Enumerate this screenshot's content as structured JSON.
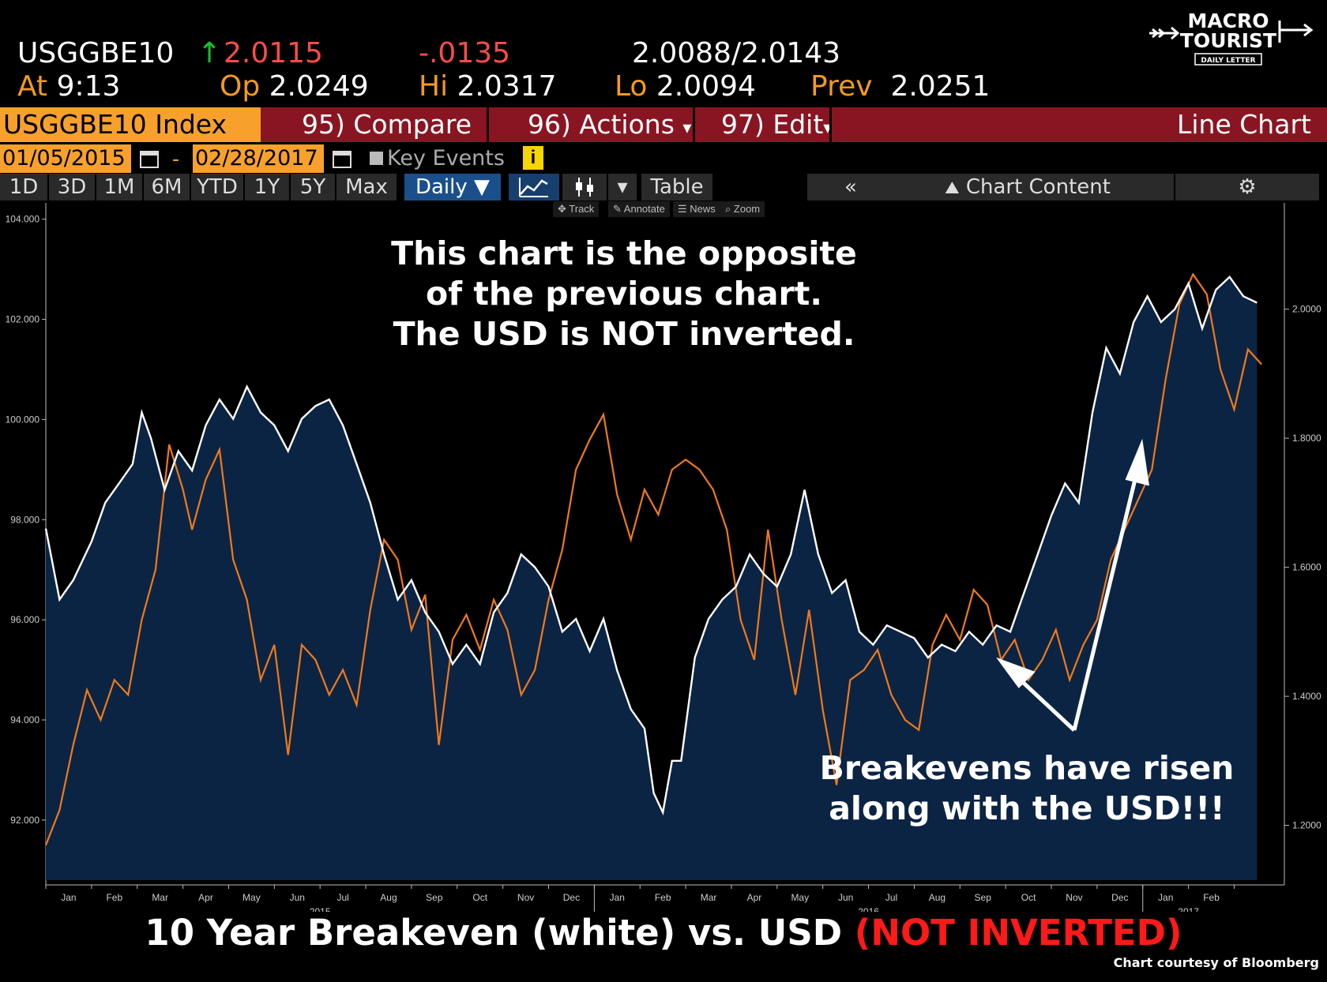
{
  "quote": {
    "ticker": "USGGBE10",
    "last": "2.0115",
    "change": "-.0135",
    "bid": "2.0088",
    "ask": "2.0143",
    "time_label": "At",
    "time": "9:13",
    "open_label": "Op",
    "open": "2.0249",
    "high_label": "Hi",
    "high": "2.0317",
    "low_label": "Lo",
    "low": "2.0094",
    "prev_label": "Prev",
    "prev": "2.0251"
  },
  "toolbar": {
    "security": "USGGBE10 Index",
    "compare": "95) Compare",
    "actions": "96) Actions",
    "edit": "97) Edit",
    "chart_type": "Line Chart"
  },
  "range": {
    "start": "01/05/2015",
    "end": "02/28/2017",
    "key_events": "Key Events",
    "info_glyph": "i"
  },
  "periods": [
    "1D",
    "3D",
    "1M",
    "6M",
    "YTD",
    "1Y",
    "5Y",
    "Max"
  ],
  "frequency": "Daily ▼",
  "table_label": "Table",
  "collapse_glyph": "«",
  "chart_content_label": "Chart Content",
  "tools": {
    "track": "Track",
    "annotate": "Annotate",
    "news": "News",
    "zoom": "Zoom"
  },
  "logo": {
    "line1": "MACRO",
    "line2": "TOURIST",
    "line3": "DAILY LETTER"
  },
  "colors": {
    "breakeven": "#ffffff",
    "usd": "#ef7a1a",
    "area_fill": "#0c2444",
    "accent": "#f7a12c",
    "bar_red": "#8a1522"
  },
  "chart_data": {
    "type": "line",
    "title": "10 Year Breakeven (white) vs. USD (NOT INVERTED)",
    "left_axis": {
      "ticks": [
        "104.000",
        "102.000",
        "100.000",
        "98.000",
        "96.000",
        "94.000",
        "92.000"
      ],
      "range": [
        90.8,
        104.2
      ]
    },
    "right_axis": {
      "ticks": [
        "2.0000",
        "1.8000",
        "1.6000",
        "1.4000",
        "1.2000"
      ],
      "range": [
        1.115,
        2.155
      ]
    },
    "x_labels": [
      {
        "m": "Jan",
        "t": 0.5
      },
      {
        "m": "Feb",
        "t": 1.5
      },
      {
        "m": "Mar",
        "t": 2.5
      },
      {
        "m": "Apr",
        "t": 3.5
      },
      {
        "m": "May",
        "t": 4.5
      },
      {
        "m": "Jun",
        "t": 5.5
      },
      {
        "m": "Jul",
        "t": 6.5
      },
      {
        "m": "Aug",
        "t": 7.5
      },
      {
        "m": "Sep",
        "t": 8.5
      },
      {
        "m": "Oct",
        "t": 9.5
      },
      {
        "m": "Nov",
        "t": 10.5
      },
      {
        "m": "Dec",
        "t": 11.5
      },
      {
        "m": "Jan",
        "t": 12.5
      },
      {
        "m": "Feb",
        "t": 13.5
      },
      {
        "m": "Mar",
        "t": 14.5
      },
      {
        "m": "Apr",
        "t": 15.5
      },
      {
        "m": "May",
        "t": 16.5
      },
      {
        "m": "Jun",
        "t": 17.5
      },
      {
        "m": "Jul",
        "t": 18.5
      },
      {
        "m": "Aug",
        "t": 19.5
      },
      {
        "m": "Sep",
        "t": 20.5
      },
      {
        "m": "Oct",
        "t": 21.5
      },
      {
        "m": "Nov",
        "t": 22.5
      },
      {
        "m": "Dec",
        "t": 23.5
      },
      {
        "m": "Jan",
        "t": 24.5
      },
      {
        "m": "Feb",
        "t": 25.5
      }
    ],
    "years": [
      {
        "y": "2015",
        "t": 6.0
      },
      {
        "y": "2016",
        "t": 18.0
      },
      {
        "y": "2017",
        "t": 25.0
      }
    ],
    "series": [
      {
        "name": "10 Year Breakeven",
        "axis": "right",
        "points": [
          [
            0.0,
            1.66
          ],
          [
            0.3,
            1.55
          ],
          [
            0.6,
            1.58
          ],
          [
            1.0,
            1.64
          ],
          [
            1.3,
            1.7
          ],
          [
            1.6,
            1.73
          ],
          [
            1.9,
            1.76
          ],
          [
            2.1,
            1.84
          ],
          [
            2.3,
            1.8
          ],
          [
            2.6,
            1.72
          ],
          [
            2.9,
            1.78
          ],
          [
            3.2,
            1.75
          ],
          [
            3.5,
            1.82
          ],
          [
            3.8,
            1.86
          ],
          [
            4.1,
            1.83
          ],
          [
            4.4,
            1.88
          ],
          [
            4.7,
            1.84
          ],
          [
            5.0,
            1.82
          ],
          [
            5.3,
            1.78
          ],
          [
            5.6,
            1.83
          ],
          [
            5.9,
            1.85
          ],
          [
            6.2,
            1.86
          ],
          [
            6.5,
            1.82
          ],
          [
            6.8,
            1.76
          ],
          [
            7.1,
            1.7
          ],
          [
            7.4,
            1.62
          ],
          [
            7.7,
            1.55
          ],
          [
            8.0,
            1.58
          ],
          [
            8.3,
            1.53
          ],
          [
            8.6,
            1.5
          ],
          [
            8.9,
            1.45
          ],
          [
            9.2,
            1.48
          ],
          [
            9.5,
            1.45
          ],
          [
            9.8,
            1.53
          ],
          [
            10.1,
            1.56
          ],
          [
            10.4,
            1.62
          ],
          [
            10.7,
            1.6
          ],
          [
            11.0,
            1.57
          ],
          [
            11.3,
            1.5
          ],
          [
            11.6,
            1.52
          ],
          [
            11.9,
            1.47
          ],
          [
            12.2,
            1.52
          ],
          [
            12.5,
            1.44
          ],
          [
            12.8,
            1.38
          ],
          [
            13.1,
            1.35
          ],
          [
            13.3,
            1.25
          ],
          [
            13.5,
            1.22
          ],
          [
            13.7,
            1.3
          ],
          [
            13.9,
            1.3
          ],
          [
            14.2,
            1.46
          ],
          [
            14.5,
            1.52
          ],
          [
            14.8,
            1.55
          ],
          [
            15.1,
            1.57
          ],
          [
            15.4,
            1.62
          ],
          [
            15.7,
            1.59
          ],
          [
            16.0,
            1.57
          ],
          [
            16.3,
            1.62
          ],
          [
            16.6,
            1.72
          ],
          [
            16.9,
            1.62
          ],
          [
            17.2,
            1.56
          ],
          [
            17.5,
            1.58
          ],
          [
            17.8,
            1.5
          ],
          [
            18.1,
            1.48
          ],
          [
            18.4,
            1.51
          ],
          [
            18.7,
            1.5
          ],
          [
            19.0,
            1.49
          ],
          [
            19.3,
            1.46
          ],
          [
            19.6,
            1.48
          ],
          [
            19.9,
            1.47
          ],
          [
            20.2,
            1.5
          ],
          [
            20.5,
            1.48
          ],
          [
            20.8,
            1.51
          ],
          [
            21.1,
            1.5
          ],
          [
            21.4,
            1.56
          ],
          [
            21.7,
            1.62
          ],
          [
            22.0,
            1.68
          ],
          [
            22.3,
            1.73
          ],
          [
            22.6,
            1.7
          ],
          [
            22.9,
            1.84
          ],
          [
            23.2,
            1.94
          ],
          [
            23.5,
            1.9
          ],
          [
            23.8,
            1.98
          ],
          [
            24.1,
            2.02
          ],
          [
            24.4,
            1.98
          ],
          [
            24.7,
            2.0
          ],
          [
            25.0,
            2.04
          ],
          [
            25.3,
            1.97
          ],
          [
            25.6,
            2.03
          ],
          [
            25.9,
            2.05
          ],
          [
            26.2,
            2.02
          ],
          [
            26.5,
            2.01
          ]
        ]
      },
      {
        "name": "USD",
        "axis": "left",
        "points": [
          [
            0.0,
            91.5
          ],
          [
            0.3,
            92.2
          ],
          [
            0.6,
            93.5
          ],
          [
            0.9,
            94.6
          ],
          [
            1.2,
            94.0
          ],
          [
            1.5,
            94.8
          ],
          [
            1.8,
            94.5
          ],
          [
            2.1,
            96.0
          ],
          [
            2.4,
            97.0
          ],
          [
            2.7,
            99.5
          ],
          [
            3.0,
            98.6
          ],
          [
            3.2,
            97.8
          ],
          [
            3.5,
            98.8
          ],
          [
            3.8,
            99.4
          ],
          [
            4.1,
            97.2
          ],
          [
            4.4,
            96.4
          ],
          [
            4.7,
            94.8
          ],
          [
            5.0,
            95.5
          ],
          [
            5.3,
            93.3
          ],
          [
            5.6,
            95.5
          ],
          [
            5.9,
            95.2
          ],
          [
            6.2,
            94.5
          ],
          [
            6.5,
            95.0
          ],
          [
            6.8,
            94.3
          ],
          [
            7.1,
            96.2
          ],
          [
            7.4,
            97.6
          ],
          [
            7.7,
            97.2
          ],
          [
            8.0,
            95.8
          ],
          [
            8.3,
            96.5
          ],
          [
            8.6,
            93.5
          ],
          [
            8.9,
            95.6
          ],
          [
            9.2,
            96.1
          ],
          [
            9.5,
            95.4
          ],
          [
            9.8,
            96.4
          ],
          [
            10.1,
            95.8
          ],
          [
            10.4,
            94.5
          ],
          [
            10.7,
            95.0
          ],
          [
            11.0,
            96.4
          ],
          [
            11.3,
            97.4
          ],
          [
            11.6,
            99.0
          ],
          [
            11.9,
            99.6
          ],
          [
            12.2,
            100.1
          ],
          [
            12.5,
            98.5
          ],
          [
            12.8,
            97.6
          ],
          [
            13.1,
            98.6
          ],
          [
            13.4,
            98.1
          ],
          [
            13.7,
            99.0
          ],
          [
            14.0,
            99.2
          ],
          [
            14.3,
            99.0
          ],
          [
            14.6,
            98.6
          ],
          [
            14.9,
            97.8
          ],
          [
            15.2,
            96.0
          ],
          [
            15.5,
            95.2
          ],
          [
            15.8,
            97.8
          ],
          [
            16.1,
            96.0
          ],
          [
            16.4,
            94.5
          ],
          [
            16.7,
            96.2
          ],
          [
            17.0,
            94.2
          ],
          [
            17.3,
            92.7
          ],
          [
            17.6,
            94.8
          ],
          [
            17.9,
            95.0
          ],
          [
            18.2,
            95.4
          ],
          [
            18.5,
            94.5
          ],
          [
            18.8,
            94.0
          ],
          [
            19.1,
            93.8
          ],
          [
            19.4,
            95.5
          ],
          [
            19.7,
            96.1
          ],
          [
            20.0,
            95.6
          ],
          [
            20.3,
            96.6
          ],
          [
            20.6,
            96.3
          ],
          [
            20.9,
            95.2
          ],
          [
            21.2,
            95.6
          ],
          [
            21.5,
            94.8
          ],
          [
            21.8,
            95.2
          ],
          [
            22.1,
            95.8
          ],
          [
            22.4,
            94.8
          ],
          [
            22.7,
            95.5
          ],
          [
            23.0,
            96.0
          ],
          [
            23.3,
            97.2
          ],
          [
            23.6,
            97.8
          ],
          [
            23.9,
            98.4
          ],
          [
            24.2,
            99.0
          ],
          [
            24.5,
            100.8
          ],
          [
            24.8,
            102.3
          ],
          [
            25.1,
            102.9
          ],
          [
            25.4,
            102.5
          ],
          [
            25.7,
            101.0
          ],
          [
            26.0,
            100.2
          ],
          [
            26.3,
            101.4
          ],
          [
            26.6,
            101.1
          ]
        ]
      }
    ],
    "annotations": {
      "top": [
        "This chart is the opposite",
        "of the previous chart.",
        "The USD is NOT inverted."
      ],
      "bottom": [
        "Breakevens have risen",
        "along with the USD!!!"
      ]
    },
    "footer_title": "10 Year Breakeven (white) vs. USD",
    "footer_highlight": "(NOT INVERTED)",
    "credit": "Chart courtesy of Bloomberg"
  }
}
